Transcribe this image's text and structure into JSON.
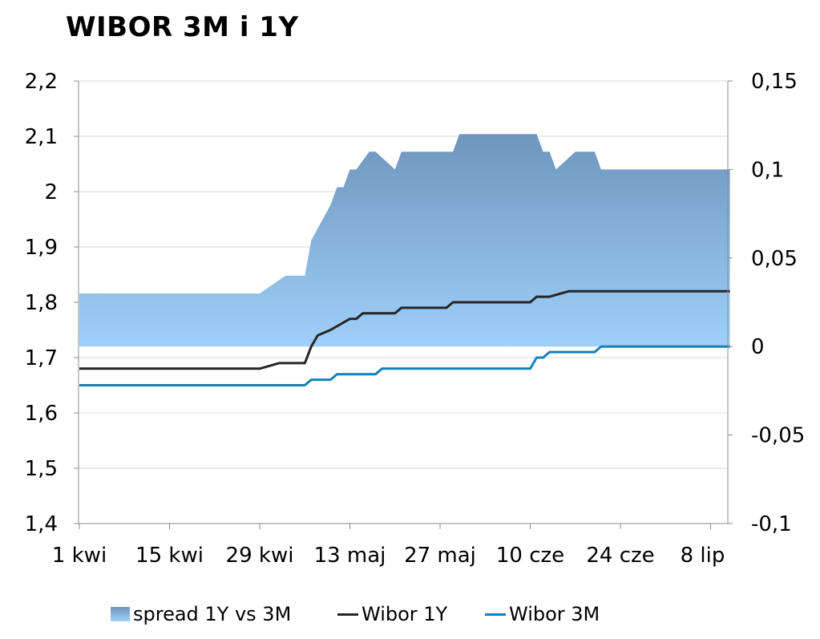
{
  "chart_data": {
    "type": "line",
    "title": "WIBOR 3M i 1Y",
    "x_tick_labels": [
      "1 kwi",
      "15 kwi",
      "29 kwi",
      "13 maj",
      "27 maj",
      "10 cze",
      "24 cze",
      "8 lip"
    ],
    "y_left": {
      "ylim": [
        1.4,
        2.2
      ],
      "tick_labels": [
        "1,4",
        "1,5",
        "1,6",
        "1,7",
        "1,8",
        "1,9",
        "2",
        "2,1",
        "2,2"
      ]
    },
    "y_right": {
      "ylim": [
        -0.1,
        0.15
      ],
      "tick_labels": [
        "-0,1",
        "-0,05",
        "0",
        "0,05",
        "0,1",
        "0,15"
      ]
    },
    "grid": true,
    "legend_position": "bottom",
    "colors": {
      "spread_top": "#6e95bd",
      "spread_bottom": "#9fd0fa",
      "wibor_1y": "#262626",
      "wibor_3m": "#1581b8",
      "grid": "#d9d9d9",
      "axis": "#8c8c8c"
    },
    "series": [
      {
        "name": "spread 1Y vs 3M",
        "kind": "area",
        "axis": "right",
        "x": [
          "1 kwi",
          "29 kwi",
          "3 maj",
          "6 maj",
          "7 maj",
          "10 maj",
          "11 maj",
          "12 maj",
          "13 maj",
          "14 maj",
          "16 maj",
          "17 maj",
          "20 maj",
          "21 maj",
          "24 maj",
          "29 maj",
          "30 maj",
          "11 cze",
          "12 cze",
          "13 cze",
          "14 cze",
          "17 cze",
          "20 cze",
          "21 cze",
          "22 cze",
          "11 lip"
        ],
        "values": [
          0.03,
          0.03,
          0.04,
          0.04,
          0.06,
          0.08,
          0.09,
          0.09,
          0.1,
          0.1,
          0.11,
          0.11,
          0.1,
          0.11,
          0.11,
          0.11,
          0.12,
          0.12,
          0.11,
          0.11,
          0.1,
          0.11,
          0.11,
          0.1,
          0.1,
          0.1
        ]
      },
      {
        "name": "Wibor 1Y",
        "kind": "line",
        "axis": "left",
        "x": [
          "1 kwi",
          "29 kwi",
          "2 maj",
          "6 maj",
          "7 maj",
          "8 maj",
          "10 maj",
          "13 maj",
          "14 maj",
          "15 maj",
          "16 maj",
          "20 maj",
          "21 maj",
          "21 maj",
          "28 maj",
          "29 maj",
          "10 cze",
          "11 cze",
          "13 cze",
          "16 cze",
          "11 lip"
        ],
        "values": [
          1.68,
          1.68,
          1.69,
          1.69,
          1.72,
          1.74,
          1.75,
          1.77,
          1.77,
          1.78,
          1.78,
          1.78,
          1.79,
          1.79,
          1.79,
          1.8,
          1.8,
          1.81,
          1.81,
          1.82,
          1.82
        ]
      },
      {
        "name": "Wibor 3M",
        "kind": "line",
        "axis": "left",
        "x": [
          "1 kwi",
          "6 maj",
          "7 maj",
          "10 maj",
          "11 maj",
          "17 maj",
          "18 maj",
          "10 cze",
          "11 cze",
          "12 cze",
          "13 cze",
          "20 cze",
          "21 cze",
          "11 lip"
        ],
        "values": [
          1.65,
          1.65,
          1.66,
          1.66,
          1.67,
          1.67,
          1.68,
          1.68,
          1.7,
          1.7,
          1.71,
          1.71,
          1.72,
          1.72
        ]
      }
    ]
  }
}
